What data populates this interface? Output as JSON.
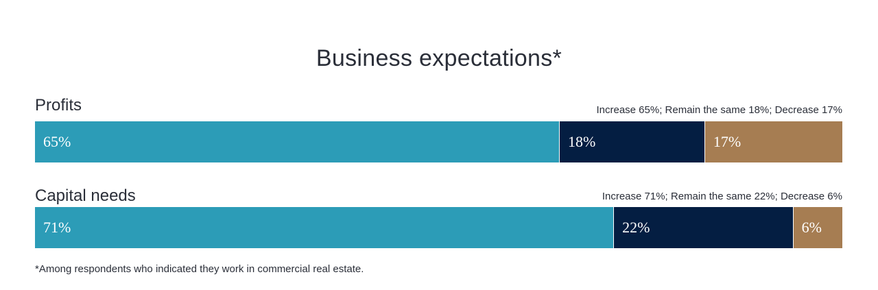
{
  "colors": {
    "increase": "#2c9cb7",
    "remain": "#041e42",
    "decrease": "#a67d52"
  },
  "title": "Business expectations*",
  "footnote": "*Among respondents who indicated they work in commercial real estate.",
  "chart_data": {
    "type": "bar",
    "orientation": "horizontal",
    "stacked": true,
    "title": "Business expectations*",
    "categories": [
      "Profits",
      "Capital needs"
    ],
    "summaries": [
      "Increase 65%; Remain the same 18%; Decrease 17%",
      "Increase 71%; Remain the same 22%; Decrease 6%"
    ],
    "series": [
      {
        "name": "Increase",
        "values": [
          65,
          71
        ],
        "labels": [
          "65%",
          "71%"
        ]
      },
      {
        "name": "Remain the same",
        "values": [
          18,
          22
        ],
        "labels": [
          "18%",
          "22%"
        ]
      },
      {
        "name": "Decrease",
        "values": [
          17,
          6
        ],
        "labels": [
          "17%",
          "6%"
        ]
      }
    ],
    "unit": "%"
  }
}
